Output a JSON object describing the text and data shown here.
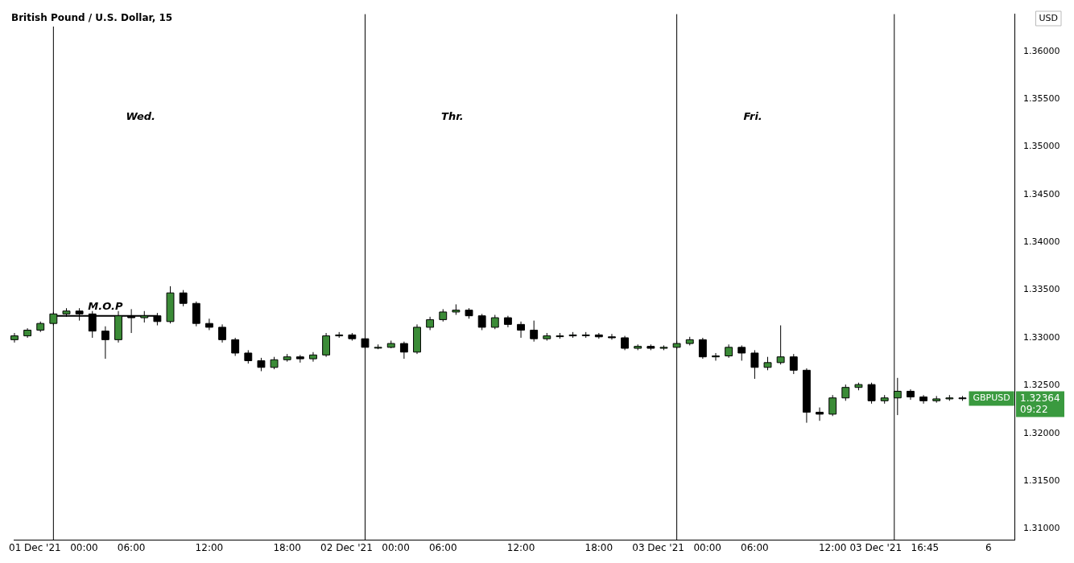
{
  "chart_data": {
    "type": "candlestick",
    "title": "British Pound / U.S. Dollar, 15",
    "ylabel": "USD",
    "x": [
      "2021-11-30T21:00",
      "2021-11-30T22:00",
      "2021-11-30T23:00",
      "2021-12-01T00:00",
      "2021-12-01T01:00",
      "2021-12-01T02:00",
      "2021-12-01T03:00",
      "2021-12-01T04:00",
      "2021-12-01T05:00",
      "2021-12-01T06:00",
      "2021-12-01T07:00",
      "2021-12-01T08:00",
      "2021-12-01T09:00",
      "2021-12-01T10:00",
      "2021-12-01T11:00",
      "2021-12-01T12:00",
      "2021-12-01T13:00",
      "2021-12-01T14:00",
      "2021-12-01T15:00",
      "2021-12-01T16:00",
      "2021-12-01T17:00",
      "2021-12-01T18:00",
      "2021-12-01T19:00",
      "2021-12-01T20:00",
      "2021-12-01T21:00",
      "2021-12-01T22:00",
      "2021-12-01T23:00",
      "2021-12-02T00:00",
      "2021-12-02T01:00",
      "2021-12-02T02:00",
      "2021-12-02T03:00",
      "2021-12-02T04:00",
      "2021-12-02T05:00",
      "2021-12-02T06:00",
      "2021-12-02T07:00",
      "2021-12-02T08:00",
      "2021-12-02T09:00",
      "2021-12-02T10:00",
      "2021-12-02T11:00",
      "2021-12-02T12:00",
      "2021-12-02T13:00",
      "2021-12-02T14:00",
      "2021-12-02T15:00",
      "2021-12-02T16:00",
      "2021-12-02T17:00",
      "2021-12-02T18:00",
      "2021-12-02T19:00",
      "2021-12-02T20:00",
      "2021-12-02T21:00",
      "2021-12-02T22:00",
      "2021-12-02T23:00",
      "2021-12-03T00:00",
      "2021-12-03T01:00",
      "2021-12-03T02:00",
      "2021-12-03T03:00",
      "2021-12-03T04:00",
      "2021-12-03T05:00",
      "2021-12-03T06:00",
      "2021-12-03T07:00",
      "2021-12-03T08:00",
      "2021-12-03T09:00",
      "2021-12-03T10:00",
      "2021-12-03T11:00",
      "2021-12-03T12:00",
      "2021-12-03T13:00",
      "2021-12-03T14:00",
      "2021-12-03T15:00",
      "2021-12-03T16:00",
      "2021-12-03T17:00",
      "2021-12-03T18:00",
      "2021-12-03T19:00",
      "2021-12-03T20:00",
      "2021-12-03T21:00",
      "2021-12-03T22:00"
    ],
    "ohlc": [
      [
        1.3298,
        1.3305,
        1.3295,
        1.3302
      ],
      [
        1.3302,
        1.331,
        1.33,
        1.3308
      ],
      [
        1.3308,
        1.3317,
        1.3306,
        1.3315
      ],
      [
        1.3315,
        1.3327,
        1.3313,
        1.3325
      ],
      [
        1.3325,
        1.3331,
        1.3322,
        1.3328
      ],
      [
        1.3328,
        1.3331,
        1.3318,
        1.3325
      ],
      [
        1.3325,
        1.3328,
        1.33,
        1.3307
      ],
      [
        1.3307,
        1.3312,
        1.3278,
        1.3298
      ],
      [
        1.3298,
        1.3328,
        1.3295,
        1.3323
      ],
      [
        1.3323,
        1.333,
        1.3305,
        1.3321
      ],
      [
        1.3321,
        1.3328,
        1.3316,
        1.3323
      ],
      [
        1.3323,
        1.3326,
        1.3313,
        1.3317
      ],
      [
        1.3317,
        1.3354,
        1.3315,
        1.3347
      ],
      [
        1.3347,
        1.335,
        1.3333,
        1.3336
      ],
      [
        1.3336,
        1.3338,
        1.3312,
        1.3315
      ],
      [
        1.3315,
        1.332,
        1.3308,
        1.3311
      ],
      [
        1.3311,
        1.3314,
        1.3295,
        1.3298
      ],
      [
        1.3298,
        1.33,
        1.3281,
        1.3284
      ],
      [
        1.3284,
        1.3287,
        1.3273,
        1.3276
      ],
      [
        1.3276,
        1.3279,
        1.3265,
        1.3269
      ],
      [
        1.3269,
        1.328,
        1.3267,
        1.3277
      ],
      [
        1.3277,
        1.3283,
        1.3275,
        1.328
      ],
      [
        1.328,
        1.3282,
        1.3274,
        1.3278
      ],
      [
        1.3278,
        1.3285,
        1.3275,
        1.3282
      ],
      [
        1.3282,
        1.3305,
        1.328,
        1.3302
      ],
      [
        1.3302,
        1.3306,
        1.33,
        1.3303
      ],
      [
        1.3303,
        1.3305,
        1.3297,
        1.3299
      ],
      [
        1.3299,
        1.33,
        1.3288,
        1.329
      ],
      [
        1.329,
        1.3293,
        1.3288,
        1.329
      ],
      [
        1.329,
        1.3297,
        1.3289,
        1.3294
      ],
      [
        1.3294,
        1.3296,
        1.3278,
        1.3285
      ],
      [
        1.3285,
        1.3314,
        1.3283,
        1.3311
      ],
      [
        1.3311,
        1.3322,
        1.3308,
        1.3319
      ],
      [
        1.3319,
        1.333,
        1.3317,
        1.3327
      ],
      [
        1.3327,
        1.3335,
        1.3324,
        1.3329
      ],
      [
        1.3329,
        1.3331,
        1.332,
        1.3323
      ],
      [
        1.3323,
        1.3325,
        1.3308,
        1.3311
      ],
      [
        1.3311,
        1.3324,
        1.3309,
        1.3321
      ],
      [
        1.3321,
        1.3323,
        1.3311,
        1.3314
      ],
      [
        1.3314,
        1.3317,
        1.33,
        1.3308
      ],
      [
        1.3308,
        1.3318,
        1.3296,
        1.3299
      ],
      [
        1.3299,
        1.3305,
        1.3297,
        1.3302
      ],
      [
        1.3302,
        1.3305,
        1.3299,
        1.3302
      ],
      [
        1.3302,
        1.3306,
        1.33,
        1.3303
      ],
      [
        1.3303,
        1.3306,
        1.33,
        1.3303
      ],
      [
        1.3303,
        1.3305,
        1.3299,
        1.3301
      ],
      [
        1.3301,
        1.3304,
        1.3298,
        1.33
      ],
      [
        1.33,
        1.3302,
        1.3287,
        1.3289
      ],
      [
        1.3289,
        1.3293,
        1.3287,
        1.3291
      ],
      [
        1.3291,
        1.3293,
        1.3287,
        1.3289
      ],
      [
        1.3289,
        1.3292,
        1.3287,
        1.329
      ],
      [
        1.329,
        1.3297,
        1.3288,
        1.3294
      ],
      [
        1.3294,
        1.3301,
        1.3292,
        1.3298
      ],
      [
        1.3298,
        1.33,
        1.3278,
        1.328
      ],
      [
        1.328,
        1.3284,
        1.3276,
        1.3281
      ],
      [
        1.3281,
        1.3293,
        1.3279,
        1.329
      ],
      [
        1.329,
        1.3292,
        1.3276,
        1.3284
      ],
      [
        1.3284,
        1.3287,
        1.3257,
        1.3269
      ],
      [
        1.3269,
        1.328,
        1.3266,
        1.3274
      ],
      [
        1.3274,
        1.3313,
        1.3272,
        1.328
      ],
      [
        1.328,
        1.3283,
        1.3262,
        1.3266
      ],
      [
        1.3266,
        1.3268,
        1.3211,
        1.3222
      ],
      [
        1.3222,
        1.3227,
        1.3213,
        1.322
      ],
      [
        1.322,
        1.324,
        1.3218,
        1.3237
      ],
      [
        1.3237,
        1.3251,
        1.3234,
        1.3248
      ],
      [
        1.3248,
        1.3253,
        1.3245,
        1.3251
      ],
      [
        1.3251,
        1.3253,
        1.3231,
        1.3234
      ],
      [
        1.3234,
        1.324,
        1.3231,
        1.3237
      ],
      [
        1.3237,
        1.3258,
        1.3219,
        1.3244
      ],
      [
        1.3244,
        1.3246,
        1.3235,
        1.3238
      ],
      [
        1.3238,
        1.324,
        1.3231,
        1.3234
      ],
      [
        1.3234,
        1.3239,
        1.3232,
        1.3236
      ],
      [
        1.3236,
        1.324,
        1.3234,
        1.3237
      ],
      [
        1.3237,
        1.3239,
        1.3234,
        1.32364
      ]
    ],
    "series": [
      {
        "type": "line",
        "name": "M.O.P",
        "color": "#000000",
        "x": [
          "2021-12-01T00:00",
          "2021-12-01T08:00"
        ],
        "values": [
          1.3323,
          1.3323
        ]
      }
    ],
    "xlim": [
      "2021-11-30T21:00",
      "2021-12-04T02:00"
    ],
    "xticks": [
      {
        "value": "2021-12-01T00:00",
        "label": "01 Dec '21   00:00"
      },
      {
        "value": "2021-12-01T06:00",
        "label": "06:00"
      },
      {
        "value": "2021-12-01T12:00",
        "label": "12:00"
      },
      {
        "value": "2021-12-01T18:00",
        "label": "18:00"
      },
      {
        "value": "2021-12-02T00:00",
        "label": "02 Dec '21   00:00"
      },
      {
        "value": "2021-12-02T06:00",
        "label": "06:00"
      },
      {
        "value": "2021-12-02T12:00",
        "label": "12:00"
      },
      {
        "value": "2021-12-02T18:00",
        "label": "18:00"
      },
      {
        "value": "2021-12-03T00:00",
        "label": "03 Dec '21   00:00"
      },
      {
        "value": "2021-12-03T06:00",
        "label": "06:00"
      },
      {
        "value": "2021-12-03T12:00",
        "label": "12:00"
      },
      {
        "value": "2021-12-03T16:45",
        "label": "03 Dec '21   16:45"
      },
      {
        "value": "2021-12-04T00:00",
        "label": "6"
      }
    ],
    "ylim": [
      1.3088,
      1.3639
    ],
    "yticks": [
      {
        "value": 1.31,
        "label": "1.31000"
      },
      {
        "value": 1.315,
        "label": "1.31500"
      },
      {
        "value": 1.32,
        "label": "1.32000"
      },
      {
        "value": 1.325,
        "label": "1.32500"
      },
      {
        "value": 1.33,
        "label": "1.33000"
      },
      {
        "value": 1.335,
        "label": "1.33500"
      },
      {
        "value": 1.34,
        "label": "1.34000"
      },
      {
        "value": 1.345,
        "label": "1.34500"
      },
      {
        "value": 1.35,
        "label": "1.35000"
      },
      {
        "value": 1.355,
        "label": "1.35500"
      },
      {
        "value": 1.36,
        "label": "1.36000"
      }
    ],
    "ref_lines": [
      {
        "axis": "x",
        "value": "2021-12-01T00:00",
        "color": "#000000"
      },
      {
        "axis": "x",
        "value": "2021-12-02T00:00",
        "color": "#000000"
      },
      {
        "axis": "x",
        "value": "2021-12-03T00:00",
        "color": "#000000"
      },
      {
        "axis": "x",
        "value": "2021-12-03T16:45",
        "color": "#000000"
      }
    ],
    "annotations": [
      "Wed.",
      "Thr.",
      "Fri.",
      "GBPUSD",
      "1.32364",
      "09:22"
    ],
    "grid": false,
    "legend": false
  }
}
